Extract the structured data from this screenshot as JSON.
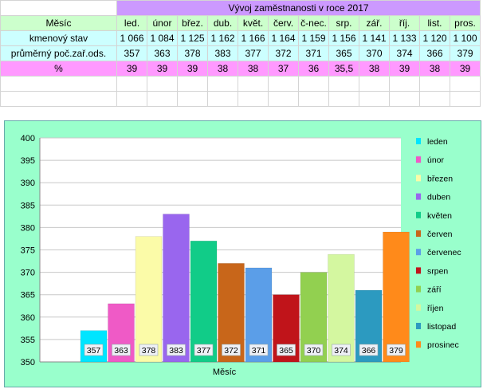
{
  "table": {
    "title": "Vývoj zaměstnanosti v roce 2017",
    "header_label": "Měsíc",
    "months": [
      "led.",
      "únor",
      "břez.",
      "dub.",
      "květ.",
      "červ.",
      "č-nec.",
      "srp.",
      "zář.",
      "říj.",
      "list.",
      "pros."
    ],
    "rows": [
      {
        "label": "kmenový stav",
        "values": [
          "1 066",
          "1 084",
          "1 125",
          "1 162",
          "1 166",
          "1 164",
          "1 159",
          "1 156",
          "1 141",
          "1 133",
          "1 120",
          "1 100"
        ]
      },
      {
        "label": "průměrný poč.zař.ods.",
        "values": [
          "357",
          "363",
          "378",
          "383",
          "377",
          "372",
          "371",
          "365",
          "370",
          "374",
          "366",
          "379"
        ]
      },
      {
        "label": "%",
        "values": [
          "39",
          "39",
          "39",
          "38",
          "38",
          "37",
          "36",
          "35,5",
          "38",
          "39",
          "38",
          "39"
        ]
      }
    ]
  },
  "chart_data": {
    "type": "bar",
    "title": "",
    "xlabel": "Měsíc",
    "ylabel": "",
    "ylim": [
      350,
      400
    ],
    "yticks": [
      350,
      355,
      360,
      365,
      370,
      375,
      380,
      385,
      390,
      395,
      400
    ],
    "grid": true,
    "legend_position": "right",
    "series": [
      {
        "name": "leden",
        "value": 357,
        "color": "#00e5ff"
      },
      {
        "name": "únor",
        "value": 363,
        "color": "#ef5ac6"
      },
      {
        "name": "březen",
        "value": 378,
        "color": "#fbfba8"
      },
      {
        "name": "duben",
        "value": 383,
        "color": "#9966ee"
      },
      {
        "name": "květen",
        "value": 377,
        "color": "#11cc88"
      },
      {
        "name": "červen",
        "value": 372,
        "color": "#c8661a"
      },
      {
        "name": "červenec",
        "value": 371,
        "color": "#5b9ee8"
      },
      {
        "name": "srpen",
        "value": 365,
        "color": "#c0141a"
      },
      {
        "name": "září",
        "value": 370,
        "color": "#92d050"
      },
      {
        "name": "říjen",
        "value": 374,
        "color": "#d4f7a0"
      },
      {
        "name": "listopad",
        "value": 366,
        "color": "#2c9ac0"
      },
      {
        "name": "prosinec",
        "value": 379,
        "color": "#ff8a1a"
      }
    ]
  }
}
